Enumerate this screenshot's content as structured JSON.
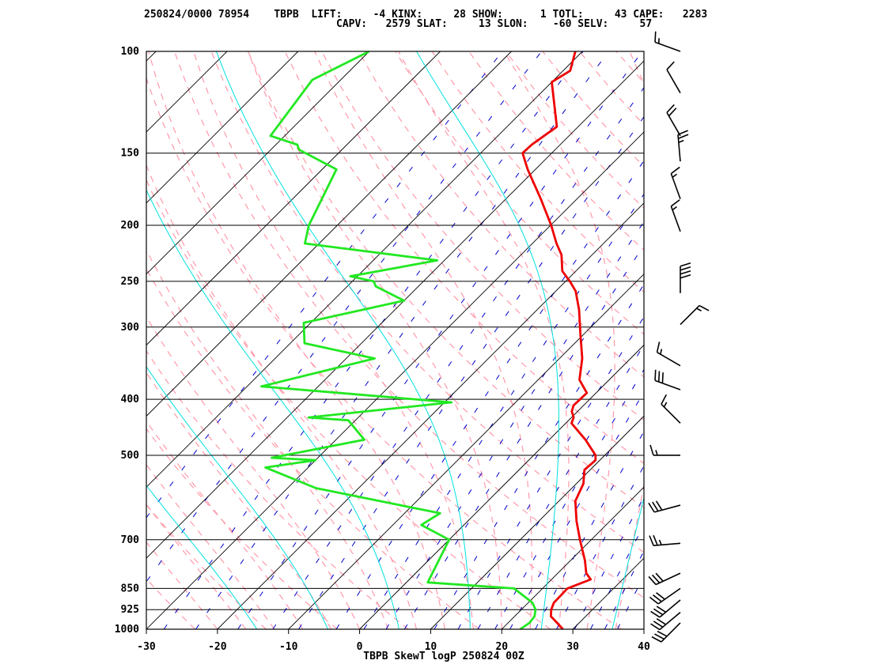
{
  "header": {
    "line1": "250824/0000 78954    TBPB  LIFT:     -4 KINX:     28 SHOW:      1 TOTL:     43 CAPE:   2283",
    "line2": "CAPV:   2579 SLAT:     13 SLON:    -60 SELV:     57"
  },
  "chart_data": {
    "type": "line",
    "title": "TBPB SkewT logP 250824 00Z",
    "station": "TBPB",
    "xlim": [
      -30,
      40
    ],
    "xticks": [
      -30,
      -20,
      -10,
      0,
      10,
      20,
      30,
      40
    ],
    "ylabel_ticks": [
      100,
      150,
      200,
      250,
      300,
      400,
      500,
      700,
      850,
      925,
      1000
    ],
    "ylim": [
      1000,
      100
    ],
    "scale": "log-pressure",
    "series": [
      {
        "key": "temperature",
        "color": "#ee0000",
        "points": [
          [
            1000,
            28.6
          ],
          [
            975,
            26.9
          ],
          [
            950,
            25.1
          ],
          [
            925,
            24.2
          ],
          [
            900,
            23.6
          ],
          [
            850,
            23.5
          ],
          [
            820,
            25.5
          ],
          [
            800,
            24.0
          ],
          [
            760,
            22.0
          ],
          [
            700,
            18.4
          ],
          [
            650,
            15.3
          ],
          [
            600,
            12.3
          ],
          [
            560,
            11.0
          ],
          [
            530,
            9.2
          ],
          [
            510,
            9.4
          ],
          [
            500,
            8.7
          ],
          [
            470,
            5.1
          ],
          [
            440,
            0.8
          ],
          [
            430,
            0.3
          ],
          [
            420,
            -0.8
          ],
          [
            410,
            -1.4
          ],
          [
            390,
            -1.3
          ],
          [
            370,
            -4.2
          ],
          [
            340,
            -6.8
          ],
          [
            310,
            -10.3
          ],
          [
            280,
            -14.1
          ],
          [
            260,
            -17.2
          ],
          [
            250,
            -19.4
          ],
          [
            240,
            -21.9
          ],
          [
            225,
            -24.3
          ],
          [
            215,
            -26.6
          ],
          [
            200,
            -29.9
          ],
          [
            180,
            -35.1
          ],
          [
            160,
            -41.1
          ],
          [
            150,
            -44.1
          ],
          [
            145,
            -44.0
          ],
          [
            135,
            -43.0
          ],
          [
            113,
            -50.0
          ],
          [
            108,
            -49.0
          ],
          [
            100,
            -51.0
          ]
        ]
      },
      {
        "key": "dewpoint",
        "color": "#22e822",
        "points": [
          [
            1000,
            22.6
          ],
          [
            975,
            23.0
          ],
          [
            950,
            22.8
          ],
          [
            925,
            22.0
          ],
          [
            900,
            20.6
          ],
          [
            850,
            16.0
          ],
          [
            830,
            3.0
          ],
          [
            700,
            0.0
          ],
          [
            660,
            -6.0
          ],
          [
            630,
            -5.0
          ],
          [
            570,
            -26.0
          ],
          [
            525,
            -36.0
          ],
          [
            510,
            -30.0
          ],
          [
            505,
            -36.5
          ],
          [
            500,
            -35.0
          ],
          [
            470,
            -26.0
          ],
          [
            435,
            -31.0
          ],
          [
            430,
            -37.0
          ],
          [
            405,
            -19.0
          ],
          [
            380,
            -48.0
          ],
          [
            340,
            -36.0
          ],
          [
            320,
            -48.0
          ],
          [
            295,
            -51.0
          ],
          [
            270,
            -40.0
          ],
          [
            255,
            -46.0
          ],
          [
            250,
            -47.0
          ],
          [
            245,
            -51.0
          ],
          [
            230,
            -41.0
          ],
          [
            215,
            -62.0
          ],
          [
            200,
            -64.0
          ],
          [
            160,
            -68.0
          ],
          [
            148,
            -76.0
          ],
          [
            145,
            -77.0
          ],
          [
            140,
            -82.0
          ],
          [
            112,
            -84.0
          ],
          [
            100,
            -80.0
          ]
        ]
      }
    ],
    "wind_barbs": [
      {
        "p": 100,
        "dir": 290,
        "spd": 15
      },
      {
        "p": 118,
        "dir": 330,
        "spd": 10
      },
      {
        "p": 140,
        "dir": 330,
        "spd": 20
      },
      {
        "p": 155,
        "dir": 355,
        "spd": 25
      },
      {
        "p": 180,
        "dir": 340,
        "spd": 15
      },
      {
        "p": 205,
        "dir": 340,
        "spd": 15
      },
      {
        "p": 262,
        "dir": 0,
        "spd": 40
      },
      {
        "p": 297,
        "dir": 45,
        "spd": 15
      },
      {
        "p": 350,
        "dir": 300,
        "spd": 15
      },
      {
        "p": 385,
        "dir": 290,
        "spd": 30
      },
      {
        "p": 440,
        "dir": 315,
        "spd": 15
      },
      {
        "p": 500,
        "dir": 270,
        "spd": 15
      },
      {
        "p": 610,
        "dir": 255,
        "spd": 30
      },
      {
        "p": 710,
        "dir": 265,
        "spd": 25
      },
      {
        "p": 800,
        "dir": 245,
        "spd": 30
      },
      {
        "p": 850,
        "dir": 235,
        "spd": 30
      },
      {
        "p": 890,
        "dir": 230,
        "spd": 30
      },
      {
        "p": 935,
        "dir": 230,
        "spd": 30
      },
      {
        "p": 975,
        "dir": 225,
        "spd": 30
      }
    ],
    "colors": {
      "isobars": "#000000",
      "isotherms": "#000000",
      "dry_adiabats": "#ff9aaa",
      "moist_adiabats": "#ff9aaa",
      "mixing_ratio": "#0000cc",
      "parcel": "#00e0e0"
    },
    "grid": true
  }
}
